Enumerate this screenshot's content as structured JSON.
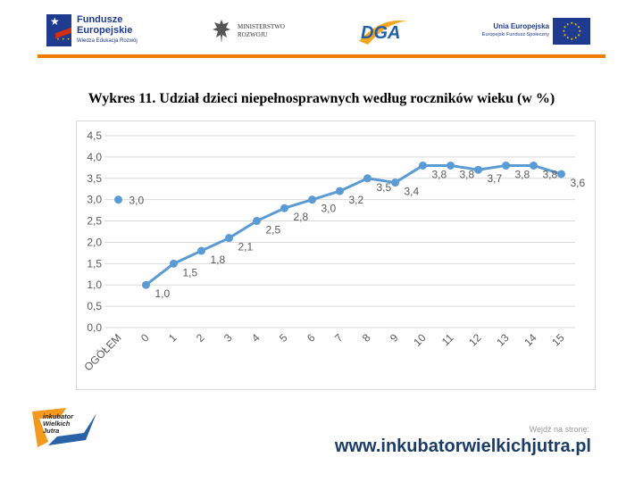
{
  "header": {
    "fe_logo": {
      "line1": "Fundusze",
      "line2": "Europejskie",
      "line3": "Wiedza Edukacja Rozwój"
    },
    "ministry_logo": {
      "line1": "MINISTERSTWO",
      "line2": "ROZWOJU"
    },
    "dga_logo": {
      "text": "DGA"
    },
    "ue_logo": {
      "line1": "Unia Europejska",
      "line2": "Europejski Fundusz Społeczny"
    },
    "accent_color": "#f07d00"
  },
  "chart_title": "Wykres 11. Udział dzieci niepełnosprawnych według roczników wieku (w %)",
  "chart_data": {
    "type": "line",
    "title": "Wykres 11. Udział dzieci niepełnosprawnych według roczników wieku (w %)",
    "xlabel": "",
    "ylabel": "",
    "ylim": [
      0,
      4.5
    ],
    "y_ticks": [
      "0,0",
      "0,5",
      "1,0",
      "1,5",
      "2,0",
      "2,5",
      "3,0",
      "3,5",
      "4,0",
      "4,5"
    ],
    "grid": true,
    "legend": "none",
    "series_color": "#5b9bd5",
    "summary_point": {
      "category": "OGÓŁEM",
      "value": 3.0,
      "label": "3,0"
    },
    "categories": [
      "0",
      "1",
      "2",
      "3",
      "4",
      "5",
      "6",
      "7",
      "8",
      "9",
      "10",
      "11",
      "12",
      "13",
      "14",
      "15"
    ],
    "values": [
      1.0,
      1.5,
      1.8,
      2.1,
      2.5,
      2.8,
      3.0,
      3.2,
      3.5,
      3.4,
      3.8,
      3.8,
      3.7,
      3.8,
      3.8,
      3.6
    ],
    "value_labels": [
      "1,0",
      "1,5",
      "1,8",
      "2,1",
      "2,5",
      "2,8",
      "3,0",
      "3,2",
      "3,5",
      "3,4",
      "3,8",
      "3,8",
      "3,7",
      "3,8",
      "3,8",
      "3,6"
    ]
  },
  "footer": {
    "logo_line1": "inkubator",
    "logo_line2": "Wielkich",
    "logo_line3": "Jutra",
    "note": "Wejdź na stronę:",
    "url": "www.inkubatorwielkichjutra.pl"
  }
}
